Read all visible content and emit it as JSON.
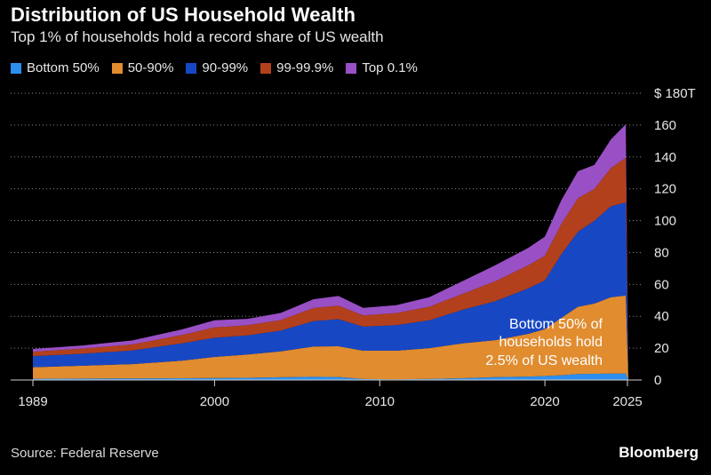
{
  "chart_data": {
    "type": "area",
    "stacked": true,
    "title": "Distribution of US Household Wealth",
    "subtitle": "Top 1% of households hold a record share of US wealth",
    "xlabel": "",
    "ylabel": "",
    "x_ticks": [
      "1989",
      "2000",
      "2010",
      "2020",
      "2025"
    ],
    "y_ticks": [
      "0",
      "20",
      "40",
      "60",
      "80",
      "100",
      "120",
      "140",
      "160",
      "$ 180T"
    ],
    "ylim": [
      0,
      180
    ],
    "xlim": [
      1989,
      2025
    ],
    "grid": true,
    "y_axis_side": "right",
    "legend_position": "top-left",
    "x": [
      1989,
      1992,
      1995,
      1998,
      2000,
      2002,
      2004,
      2006,
      2007.5,
      2009,
      2011,
      2013,
      2015,
      2017,
      2019,
      2020,
      2021,
      2022,
      2023,
      2024,
      2024.9
    ],
    "series": [
      {
        "name": "Bottom 50%",
        "color": "#2c8ff0",
        "values": [
          0.8,
          0.9,
          1.0,
          1.1,
          1.3,
          1.4,
          1.7,
          2.0,
          1.9,
          0.6,
          0.4,
          0.7,
          1.1,
          1.8,
          2.2,
          2.5,
          3.0,
          3.8,
          3.9,
          4.0,
          4.0
        ]
      },
      {
        "name": "50-90%",
        "color": "#e08c2f",
        "values": [
          7.2,
          8.1,
          9.0,
          11.0,
          13.2,
          14.6,
          16.3,
          19.0,
          19.3,
          17.8,
          18.0,
          19.3,
          21.9,
          23.2,
          26.8,
          29.5,
          36.0,
          42.2,
          44.1,
          48.0,
          49.0
        ]
      },
      {
        "name": "90-99%",
        "color": "#1847c4",
        "values": [
          7.0,
          7.5,
          8.5,
          10.9,
          12.0,
          12.0,
          13.0,
          16.0,
          17.0,
          15.1,
          16.0,
          17.5,
          21.0,
          24.5,
          28.5,
          30.5,
          40.0,
          47.0,
          52.0,
          57.0,
          58.5
        ]
      },
      {
        "name": "99-99.9%",
        "color": "#b3401c",
        "values": [
          2.8,
          3.2,
          3.8,
          5.2,
          6.5,
          6.4,
          6.6,
          8.2,
          8.5,
          7.0,
          7.6,
          8.5,
          10.0,
          12.5,
          14.5,
          15.5,
          19.0,
          21.0,
          20.0,
          24.0,
          28.0
        ]
      },
      {
        "name": "Top 0.1%",
        "color": "#9950c4",
        "values": [
          1.7,
          2.0,
          2.5,
          3.5,
          4.5,
          4.0,
          4.5,
          5.5,
          6.0,
          4.8,
          5.0,
          6.0,
          8.0,
          10.0,
          11.0,
          12.0,
          15.0,
          17.0,
          15.0,
          18.0,
          21.0
        ]
      }
    ],
    "annotation": [
      "Bottom 50% of",
      "households hold",
      "2.5% of US wealth"
    ]
  },
  "source": "Source: Federal Reserve",
  "brand": "Bloomberg"
}
